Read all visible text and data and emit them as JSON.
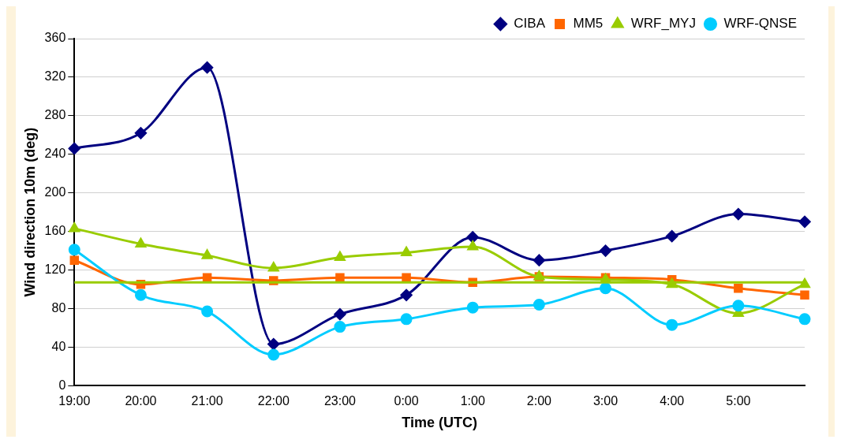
{
  "chart_data": {
    "type": "line",
    "xlabel": "Time (UTC)",
    "ylabel": "Wind direction 10m (deg)",
    "categories": [
      "19:00",
      "20:00",
      "21:00",
      "22:00",
      "23:00",
      "0:00",
      "1:00",
      "2:00",
      "3:00",
      "4:00",
      "5:00",
      null
    ],
    "series": [
      {
        "name": "CIBA",
        "color": "#000080",
        "marker": "diamond",
        "values": [
          246,
          262,
          330,
          43,
          74,
          94,
          154,
          130,
          140,
          155,
          178,
          170
        ]
      },
      {
        "name": "MM5",
        "color": "#ff6600",
        "marker": "square",
        "values": [
          130,
          105,
          112,
          109,
          112,
          112,
          107,
          113,
          112,
          110,
          101,
          94
        ]
      },
      {
        "name": "WRF_MYJ",
        "color": "#99cc00",
        "marker": "triangle",
        "values": [
          163,
          147,
          135,
          122,
          133,
          138,
          144,
          113,
          110,
          105,
          75,
          105
        ]
      },
      {
        "name": "WRF-QNSE",
        "color": "#00ccff",
        "marker": "circle",
        "values": [
          141,
          94,
          77,
          32,
          61,
          69,
          81,
          84,
          101,
          63,
          83,
          69
        ]
      }
    ],
    "ref_lines": [
      {
        "axis": "y",
        "value": 107,
        "color": "#99cc00"
      }
    ],
    "ylim": [
      0,
      360
    ],
    "yticks": [
      0,
      40,
      80,
      120,
      160,
      200,
      240,
      280,
      320,
      360
    ],
    "grid": "y",
    "legend": "top"
  }
}
